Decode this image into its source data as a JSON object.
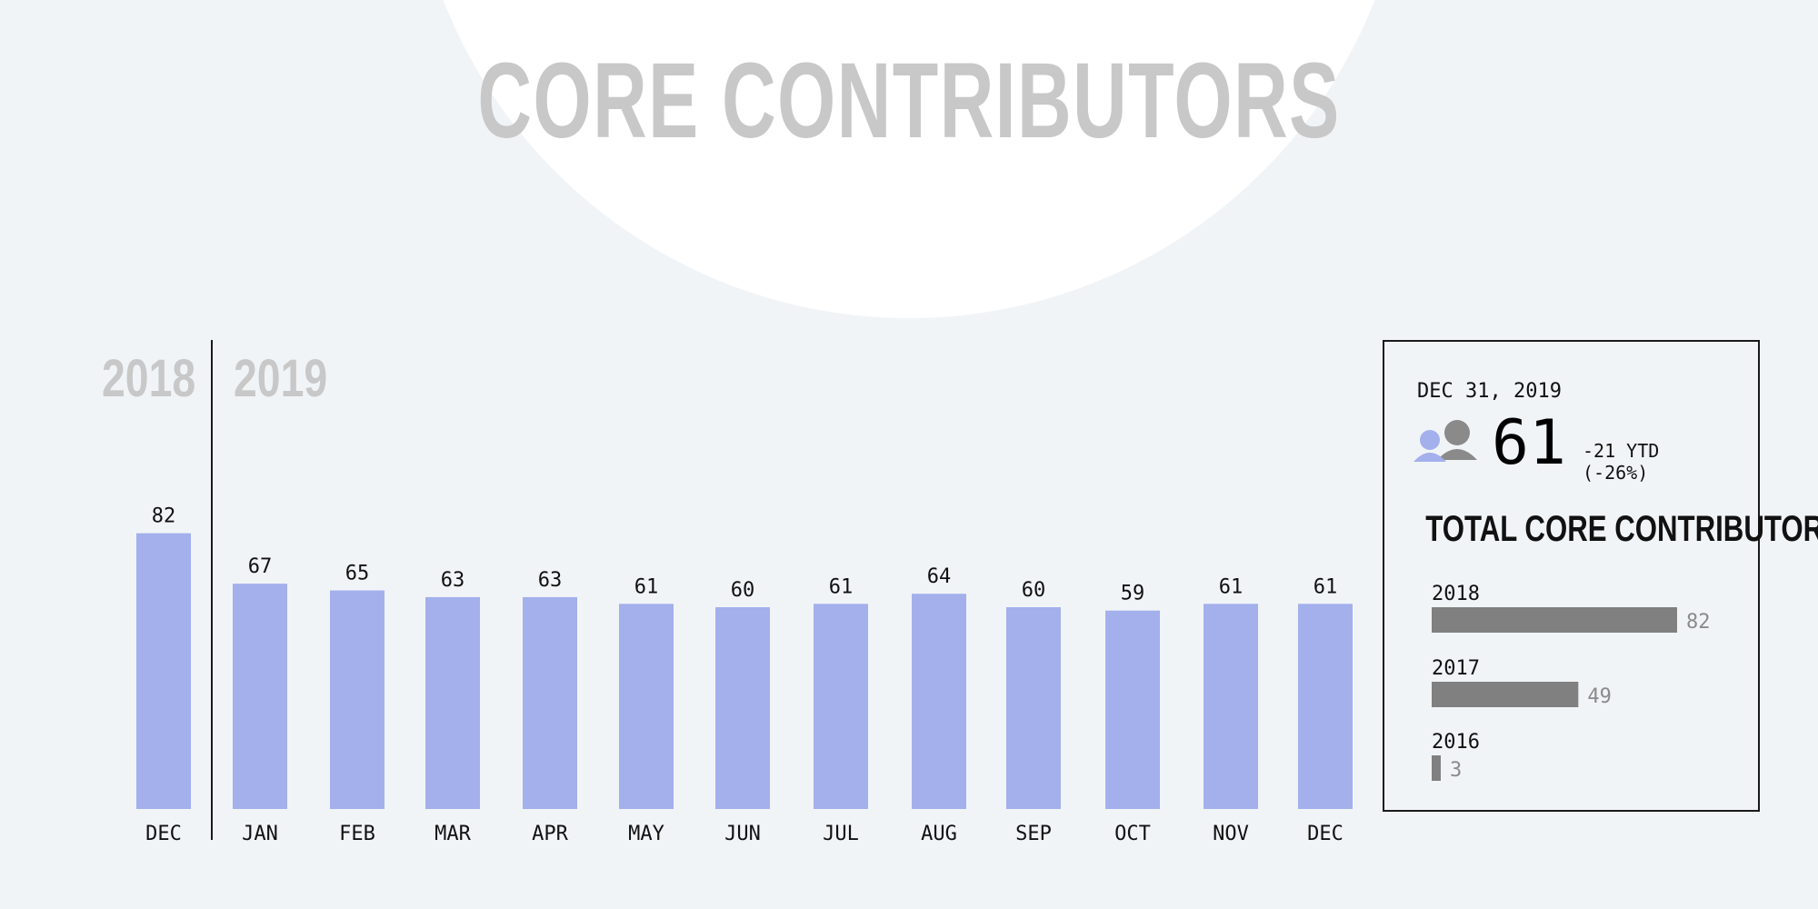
{
  "title": "CORE CONTRIBUTORS",
  "year_labels": [
    "2018",
    "2019"
  ],
  "colors": {
    "bar": "#a3b0ec",
    "summary_bar": "#808080",
    "title": "#c8c8c8"
  },
  "chart_data": [
    {
      "type": "bar",
      "title": "CORE CONTRIBUTORS",
      "categories": [
        "DEC",
        "JAN",
        "FEB",
        "MAR",
        "APR",
        "MAY",
        "JUN",
        "JUL",
        "AUG",
        "SEP",
        "OCT",
        "NOV",
        "DEC"
      ],
      "groups": [
        "2018",
        "2019"
      ],
      "values": [
        82,
        67,
        65,
        63,
        63,
        61,
        60,
        61,
        64,
        60,
        59,
        61,
        61
      ],
      "ylim": [
        0,
        90
      ],
      "grid": false,
      "legend": "none"
    },
    {
      "type": "bar",
      "orientation": "horizontal",
      "title": "TOTAL CORE CONTRIBUTORS",
      "categories": [
        "2018",
        "2017",
        "2016"
      ],
      "values": [
        82,
        49,
        3
      ],
      "xlim": [
        0,
        82
      ]
    }
  ],
  "summary": {
    "date": "DEC 31, 2019",
    "icon": "people-icon",
    "value": "61",
    "change_line1": "-21 YTD",
    "change_line2": "(-26%)",
    "heading": "TOTAL CORE CONTRIBUTORS"
  }
}
